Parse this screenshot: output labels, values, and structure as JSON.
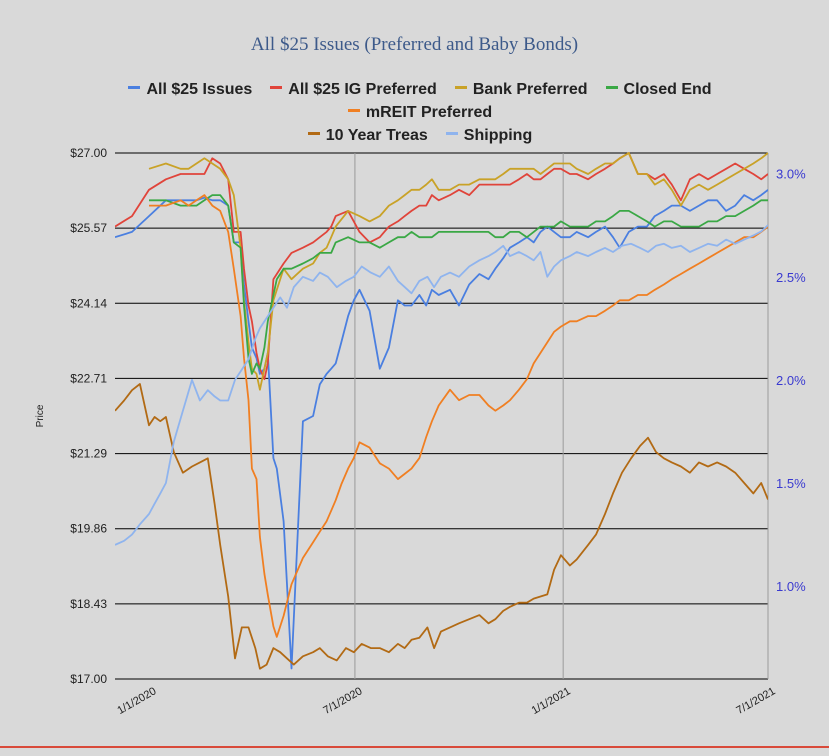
{
  "chart_data": {
    "type": "line",
    "title": "All $25 Issues (Preferred and Baby Bonds)",
    "ylabel": "Price",
    "ylim": [
      17.0,
      27.0
    ],
    "y2lim": [
      0.55,
      3.1
    ],
    "yticks": [
      "$27.00",
      "$25.57",
      "$24.14",
      "$22.71",
      "$21.29",
      "$19.86",
      "$18.43",
      "$17.00"
    ],
    "y2ticks": [
      "3.0%",
      "2.5%",
      "2.0%",
      "1.5%",
      "1.0%"
    ],
    "y2tick_values": [
      3.0,
      2.5,
      2.0,
      1.5,
      1.0
    ],
    "xticks": [
      "1/1/2020",
      "7/1/2020",
      "1/1/2021",
      "7/1/2021"
    ],
    "xtick_values": [
      0,
      182,
      366,
      547
    ],
    "xlim": [
      -30,
      547
    ],
    "x_unit": "days from 1/1/2020",
    "grid": "horizontal",
    "legend_position": "top",
    "series": [
      {
        "name": "All $25 Issues",
        "color": "#4a7fe0",
        "axis": "left",
        "x": [
          -30,
          -15,
          0,
          15,
          28,
          35,
          42,
          49,
          56,
          63,
          70,
          75,
          81,
          84,
          88,
          91,
          95,
          98,
          102,
          105,
          110,
          113,
          119,
          126,
          136,
          145,
          151,
          157,
          161,
          165,
          170,
          176,
          181,
          186,
          195,
          204,
          212,
          220,
          226,
          232,
          239,
          245,
          250,
          256,
          266,
          274,
          283,
          292,
          300,
          306,
          313,
          319,
          327,
          334,
          340,
          346,
          352,
          358,
          364,
          372,
          378,
          388,
          395,
          403,
          410,
          416,
          424,
          432,
          440,
          447,
          455,
          462,
          470,
          478,
          486,
          494,
          502,
          510,
          518,
          526,
          534,
          541,
          547
        ],
        "y": [
          25.4,
          25.5,
          25.8,
          26.1,
          26.1,
          26.1,
          26.1,
          26.15,
          26.1,
          26.1,
          26.0,
          25.3,
          25.3,
          24.5,
          23.8,
          23.3,
          23.1,
          22.8,
          22.9,
          23.2,
          21.2,
          21.0,
          20.0,
          17.2,
          21.9,
          22.0,
          22.6,
          22.8,
          22.9,
          23.0,
          23.4,
          23.9,
          24.2,
          24.4,
          24.0,
          22.9,
          23.3,
          24.2,
          24.1,
          24.1,
          24.3,
          24.1,
          24.4,
          24.3,
          24.4,
          24.1,
          24.5,
          24.7,
          24.6,
          24.8,
          25.0,
          25.2,
          25.3,
          25.4,
          25.3,
          25.5,
          25.6,
          25.5,
          25.4,
          25.4,
          25.5,
          25.4,
          25.5,
          25.6,
          25.4,
          25.2,
          25.5,
          25.6,
          25.6,
          25.8,
          25.9,
          26.0,
          26.0,
          25.9,
          26.0,
          26.1,
          26.1,
          25.9,
          26.0,
          26.2,
          26.1,
          26.2,
          26.3
        ]
      },
      {
        "name": "All $25 IG Preferred",
        "color": "#e0443a",
        "axis": "left",
        "x": [
          -30,
          -15,
          0,
          15,
          28,
          35,
          42,
          49,
          56,
          63,
          70,
          75,
          81,
          84,
          88,
          91,
          95,
          98,
          102,
          105,
          110,
          113,
          119,
          126,
          136,
          145,
          151,
          157,
          161,
          165,
          176,
          186,
          195,
          204,
          212,
          220,
          226,
          232,
          239,
          245,
          250,
          256,
          266,
          274,
          283,
          292,
          300,
          306,
          313,
          319,
          327,
          334,
          340,
          346,
          352,
          358,
          364,
          372,
          378,
          388,
          395,
          403,
          410,
          416,
          424,
          432,
          440,
          447,
          455,
          462,
          470,
          478,
          486,
          494,
          502,
          510,
          518,
          526,
          534,
          541,
          547
        ],
        "y": [
          25.6,
          25.8,
          26.3,
          26.5,
          26.6,
          26.6,
          26.6,
          26.6,
          26.9,
          26.8,
          26.5,
          25.5,
          25.5,
          24.8,
          24.1,
          23.8,
          23.2,
          22.9,
          22.7,
          23.0,
          24.6,
          24.7,
          24.9,
          25.1,
          25.2,
          25.3,
          25.4,
          25.5,
          25.6,
          25.8,
          25.9,
          25.5,
          25.3,
          25.4,
          25.6,
          25.7,
          25.8,
          25.9,
          26.0,
          26.0,
          26.2,
          26.1,
          26.2,
          26.3,
          26.2,
          26.4,
          26.4,
          26.4,
          26.4,
          26.4,
          26.5,
          26.6,
          26.5,
          26.5,
          26.6,
          26.7,
          26.7,
          26.6,
          26.6,
          26.5,
          26.6,
          26.7,
          26.8,
          26.9,
          27.0,
          26.6,
          26.6,
          26.5,
          26.6,
          26.4,
          26.1,
          26.5,
          26.6,
          26.5,
          26.6,
          26.7,
          26.8,
          26.7,
          26.6,
          26.5,
          26.6
        ]
      },
      {
        "name": "Bank Preferred",
        "color": "#c9a227",
        "axis": "left",
        "x": [
          0,
          15,
          28,
          35,
          42,
          49,
          56,
          63,
          70,
          75,
          81,
          84,
          88,
          91,
          95,
          98,
          102,
          105,
          110,
          113,
          119,
          126,
          136,
          145,
          151,
          157,
          161,
          165,
          176,
          186,
          195,
          204,
          212,
          220,
          226,
          232,
          239,
          245,
          250,
          256,
          266,
          274,
          283,
          292,
          300,
          306,
          313,
          319,
          327,
          334,
          340,
          346,
          352,
          358,
          364,
          372,
          378,
          388,
          395,
          403,
          410,
          416,
          424,
          432,
          440,
          447,
          455,
          462,
          470,
          478,
          486,
          494,
          502,
          510,
          518,
          526,
          534,
          541,
          547
        ],
        "y": [
          26.7,
          26.8,
          26.7,
          26.7,
          26.8,
          26.9,
          26.8,
          26.7,
          26.5,
          26.2,
          25.2,
          24.2,
          23.4,
          22.9,
          22.8,
          22.5,
          22.9,
          23.2,
          24.2,
          24.4,
          24.8,
          24.6,
          24.8,
          24.9,
          25.1,
          25.2,
          25.4,
          25.6,
          25.9,
          25.8,
          25.7,
          25.8,
          26.0,
          26.1,
          26.2,
          26.3,
          26.3,
          26.4,
          26.5,
          26.3,
          26.3,
          26.4,
          26.4,
          26.5,
          26.5,
          26.5,
          26.6,
          26.7,
          26.7,
          26.7,
          26.7,
          26.6,
          26.7,
          26.8,
          26.8,
          26.8,
          26.7,
          26.6,
          26.7,
          26.8,
          26.8,
          26.9,
          27.0,
          26.6,
          26.6,
          26.4,
          26.5,
          26.3,
          26.0,
          26.3,
          26.4,
          26.3,
          26.4,
          26.5,
          26.6,
          26.7,
          26.8,
          26.9,
          27.0
        ]
      },
      {
        "name": "Closed End",
        "color": "#3aa845",
        "axis": "left",
        "x": [
          0,
          15,
          28,
          35,
          42,
          49,
          56,
          63,
          70,
          75,
          81,
          84,
          88,
          91,
          95,
          98,
          102,
          105,
          110,
          113,
          119,
          126,
          136,
          145,
          151,
          157,
          161,
          165,
          176,
          186,
          195,
          204,
          212,
          220,
          226,
          232,
          239,
          245,
          250,
          256,
          266,
          274,
          283,
          292,
          300,
          306,
          313,
          319,
          327,
          334,
          340,
          346,
          352,
          358,
          364,
          372,
          378,
          388,
          395,
          403,
          410,
          416,
          424,
          432,
          440,
          447,
          455,
          462,
          470,
          478,
          486,
          494,
          502,
          510,
          518,
          526,
          534,
          541,
          547
        ],
        "y": [
          26.1,
          26.1,
          26.0,
          26.0,
          26.0,
          26.1,
          26.2,
          26.2,
          26.0,
          25.3,
          25.2,
          24.1,
          23.1,
          22.8,
          23.0,
          22.9,
          23.3,
          23.8,
          24.3,
          24.6,
          24.8,
          24.8,
          24.9,
          25.0,
          25.1,
          25.1,
          25.1,
          25.3,
          25.4,
          25.3,
          25.3,
          25.2,
          25.3,
          25.4,
          25.4,
          25.5,
          25.4,
          25.4,
          25.4,
          25.5,
          25.5,
          25.5,
          25.5,
          25.5,
          25.5,
          25.4,
          25.4,
          25.5,
          25.5,
          25.4,
          25.5,
          25.6,
          25.6,
          25.6,
          25.7,
          25.6,
          25.6,
          25.6,
          25.7,
          25.7,
          25.8,
          25.9,
          25.9,
          25.8,
          25.7,
          25.6,
          25.7,
          25.7,
          25.6,
          25.6,
          25.6,
          25.7,
          25.7,
          25.8,
          25.8,
          25.9,
          26.0,
          26.1,
          26.1
        ]
      },
      {
        "name": "mREIT Preferred",
        "color": "#f07f22",
        "axis": "left",
        "x": [
          0,
          15,
          28,
          35,
          42,
          49,
          56,
          63,
          70,
          75,
          81,
          84,
          88,
          91,
          95,
          98,
          102,
          105,
          110,
          113,
          119,
          126,
          136,
          145,
          151,
          157,
          161,
          165,
          170,
          176,
          181,
          186,
          195,
          204,
          212,
          220,
          226,
          232,
          239,
          245,
          250,
          256,
          266,
          274,
          283,
          292,
          300,
          306,
          313,
          319,
          327,
          334,
          340,
          346,
          352,
          358,
          364,
          372,
          378,
          388,
          395,
          403,
          410,
          416,
          424,
          432,
          440,
          447,
          455,
          462,
          470,
          478,
          486,
          494,
          502,
          510,
          518,
          526,
          534,
          541,
          547
        ],
        "y": [
          26.0,
          26.0,
          26.1,
          26.0,
          26.1,
          26.2,
          26.0,
          25.9,
          25.5,
          24.8,
          23.9,
          23.1,
          22.3,
          21.0,
          20.8,
          19.7,
          19.0,
          18.6,
          18.0,
          17.8,
          18.2,
          18.8,
          19.3,
          19.6,
          19.8,
          20.0,
          20.2,
          20.4,
          20.7,
          21.0,
          21.2,
          21.5,
          21.4,
          21.1,
          21.0,
          20.8,
          20.9,
          21.0,
          21.2,
          21.6,
          21.9,
          22.2,
          22.5,
          22.3,
          22.4,
          22.4,
          22.2,
          22.1,
          22.2,
          22.3,
          22.5,
          22.7,
          23.0,
          23.2,
          23.4,
          23.6,
          23.7,
          23.8,
          23.8,
          23.9,
          23.9,
          24.0,
          24.1,
          24.2,
          24.2,
          24.3,
          24.3,
          24.4,
          24.5,
          24.6,
          24.7,
          24.8,
          24.9,
          25.0,
          25.1,
          25.2,
          25.3,
          25.4,
          25.4,
          25.5,
          25.6
        ]
      },
      {
        "name": "10 Year Treas",
        "color": "#b26a14",
        "axis": "right",
        "x": [
          -30,
          -22,
          -15,
          -8,
          0,
          5,
          10,
          15,
          22,
          30,
          38,
          45,
          52,
          58,
          63,
          70,
          76,
          82,
          88,
          94,
          98,
          104,
          110,
          116,
          122,
          128,
          136,
          145,
          151,
          158,
          166,
          174,
          181,
          188,
          196,
          204,
          212,
          220,
          226,
          232,
          239,
          246,
          252,
          258,
          266,
          274,
          283,
          292,
          300,
          306,
          313,
          319,
          327,
          334,
          340,
          346,
          352,
          358,
          364,
          372,
          378,
          388,
          395,
          403,
          410,
          418,
          426,
          434,
          441,
          448,
          455,
          462,
          470,
          478,
          486,
          494,
          502,
          510,
          518,
          526,
          534,
          541,
          547
        ],
        "y": [
          1.85,
          1.9,
          1.95,
          1.98,
          1.78,
          1.82,
          1.8,
          1.82,
          1.65,
          1.55,
          1.58,
          1.6,
          1.62,
          1.4,
          1.2,
          0.95,
          0.65,
          0.8,
          0.8,
          0.7,
          0.6,
          0.62,
          0.7,
          0.68,
          0.65,
          0.62,
          0.66,
          0.68,
          0.7,
          0.66,
          0.64,
          0.7,
          0.68,
          0.72,
          0.7,
          0.7,
          0.68,
          0.72,
          0.7,
          0.74,
          0.75,
          0.8,
          0.7,
          0.78,
          0.8,
          0.82,
          0.84,
          0.86,
          0.82,
          0.84,
          0.88,
          0.9,
          0.92,
          0.92,
          0.94,
          0.95,
          0.96,
          1.08,
          1.15,
          1.1,
          1.13,
          1.2,
          1.25,
          1.35,
          1.45,
          1.55,
          1.62,
          1.68,
          1.72,
          1.65,
          1.62,
          1.6,
          1.58,
          1.55,
          1.6,
          1.58,
          1.6,
          1.58,
          1.55,
          1.5,
          1.45,
          1.5,
          1.42
        ]
      },
      {
        "name": "Shipping",
        "color": "#8fb4ee",
        "axis": "right",
        "x": [
          -30,
          -22,
          -15,
          -8,
          0,
          5,
          10,
          15,
          22,
          30,
          38,
          45,
          52,
          58,
          63,
          70,
          76,
          82,
          88,
          94,
          98,
          104,
          110,
          116,
          122,
          128,
          136,
          145,
          151,
          158,
          166,
          174,
          181,
          188,
          196,
          204,
          212,
          220,
          226,
          232,
          239,
          246,
          252,
          258,
          266,
          274,
          283,
          292,
          300,
          306,
          313,
          319,
          327,
          334,
          340,
          346,
          352,
          358,
          364,
          372,
          378,
          388,
          395,
          403,
          410,
          418,
          426,
          434,
          441,
          448,
          455,
          462,
          470,
          478,
          486,
          494,
          502,
          510,
          518,
          526,
          534,
          541,
          547
        ],
        "y": [
          1.2,
          1.22,
          1.25,
          1.3,
          1.35,
          1.4,
          1.45,
          1.5,
          1.7,
          1.85,
          2.0,
          1.9,
          1.95,
          1.92,
          1.9,
          1.9,
          2.0,
          2.05,
          2.1,
          2.2,
          2.25,
          2.3,
          2.35,
          2.4,
          2.35,
          2.45,
          2.5,
          2.48,
          2.52,
          2.5,
          2.45,
          2.48,
          2.5,
          2.55,
          2.52,
          2.5,
          2.55,
          2.48,
          2.45,
          2.42,
          2.48,
          2.5,
          2.45,
          2.5,
          2.52,
          2.5,
          2.55,
          2.58,
          2.6,
          2.62,
          2.65,
          2.6,
          2.62,
          2.6,
          2.58,
          2.62,
          2.5,
          2.55,
          2.58,
          2.6,
          2.62,
          2.6,
          2.62,
          2.64,
          2.62,
          2.65,
          2.66,
          2.64,
          2.62,
          2.65,
          2.66,
          2.64,
          2.65,
          2.62,
          2.64,
          2.66,
          2.65,
          2.68,
          2.66,
          2.68,
          2.7,
          2.72,
          2.75
        ]
      }
    ]
  }
}
